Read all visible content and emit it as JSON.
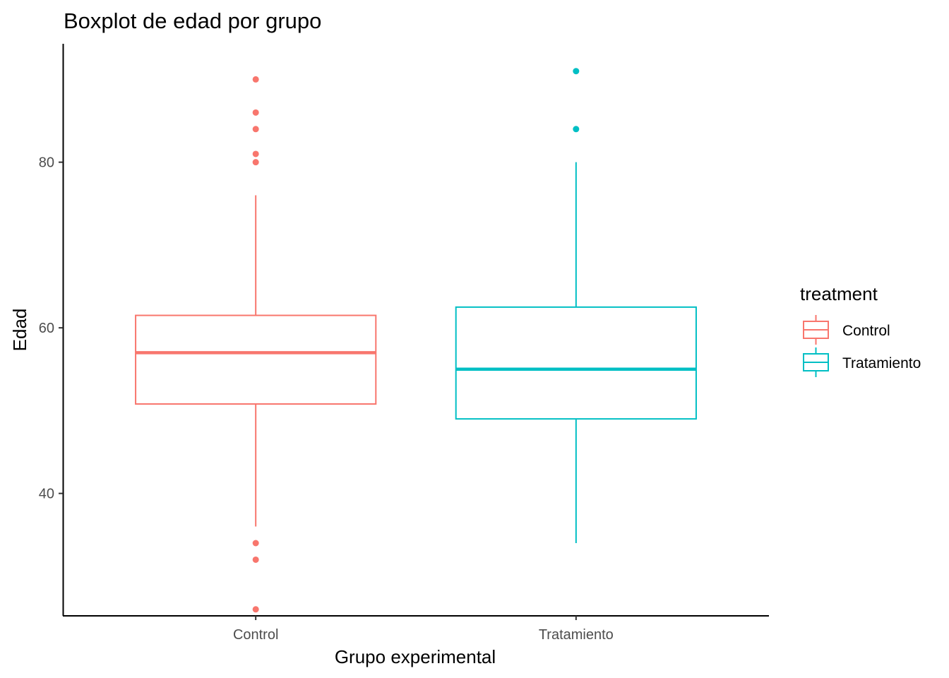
{
  "chart_data": {
    "type": "boxplot",
    "title": "Boxplot de edad por grupo",
    "xlabel": "Grupo experimental",
    "ylabel": "Edad",
    "categories": [
      "Control",
      "Tratamiento"
    ],
    "y_ticks": [
      40,
      60,
      80
    ],
    "y_tick_labels": [
      "40",
      "60",
      "80"
    ],
    "ylim": [
      25.3,
      94.3
    ],
    "grid": false,
    "legend": {
      "title": "treatment",
      "position": "right",
      "entries": [
        "Control",
        "Tratamiento"
      ]
    },
    "series": [
      {
        "name": "Control",
        "color": "#F8766D",
        "whisker_low": 36,
        "q1": 50.8,
        "median": 57,
        "q3": 61.5,
        "whisker_high": 76,
        "outliers": [
          90,
          86,
          84,
          81,
          80,
          34,
          32,
          26
        ]
      },
      {
        "name": "Tratamiento",
        "color": "#00BFC4",
        "whisker_low": 34,
        "q1": 49,
        "median": 55,
        "q3": 62.5,
        "whisker_high": 80,
        "outliers": [
          91,
          84
        ]
      }
    ]
  }
}
